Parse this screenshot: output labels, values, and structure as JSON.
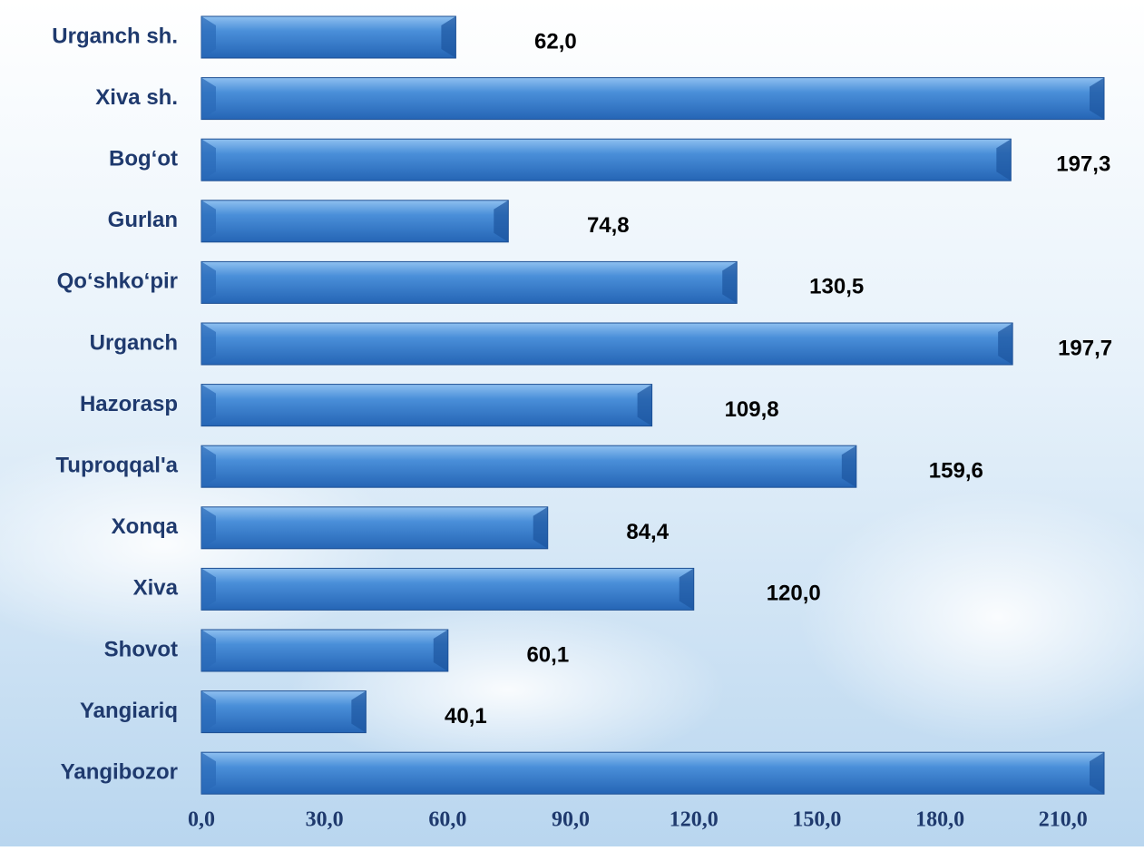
{
  "chart_data": {
    "type": "bar",
    "orientation": "horizontal",
    "categories": [
      "Urganch sh.",
      "Xiva sh.",
      "Bog‘ot",
      "Gurlan",
      "Qo‘shko‘pir",
      "Urganch",
      "Hazorasp",
      "Tuproqqal'a",
      "Xonqa",
      "Xiva",
      "Shovot",
      "Yangiariq",
      "Yangibozor"
    ],
    "values": [
      62.0,
      220,
      197.3,
      74.8,
      130.5,
      197.7,
      109.8,
      159.6,
      84.4,
      120.0,
      60.1,
      40.1,
      220
    ],
    "value_labels": [
      "62,0",
      null,
      "197,3",
      "74,8",
      "130,5",
      "197,7",
      "109,8",
      "159,6",
      "84,4",
      "120,0",
      "60,1",
      "40,1",
      null
    ],
    "color": "#3a7fcf",
    "xlim": [
      0,
      220
    ],
    "xticks": [
      {
        "value": 0,
        "label": "0,0"
      },
      {
        "value": 30,
        "label": "30,0"
      },
      {
        "value": 60,
        "label": "60,0"
      },
      {
        "value": 90,
        "label": "90,0"
      },
      {
        "value": 120,
        "label": "120,0"
      },
      {
        "value": 150,
        "label": "150,0"
      },
      {
        "value": 180,
        "label": "180,0"
      },
      {
        "value": 210,
        "label": "210,0"
      }
    ],
    "grid": false
  }
}
